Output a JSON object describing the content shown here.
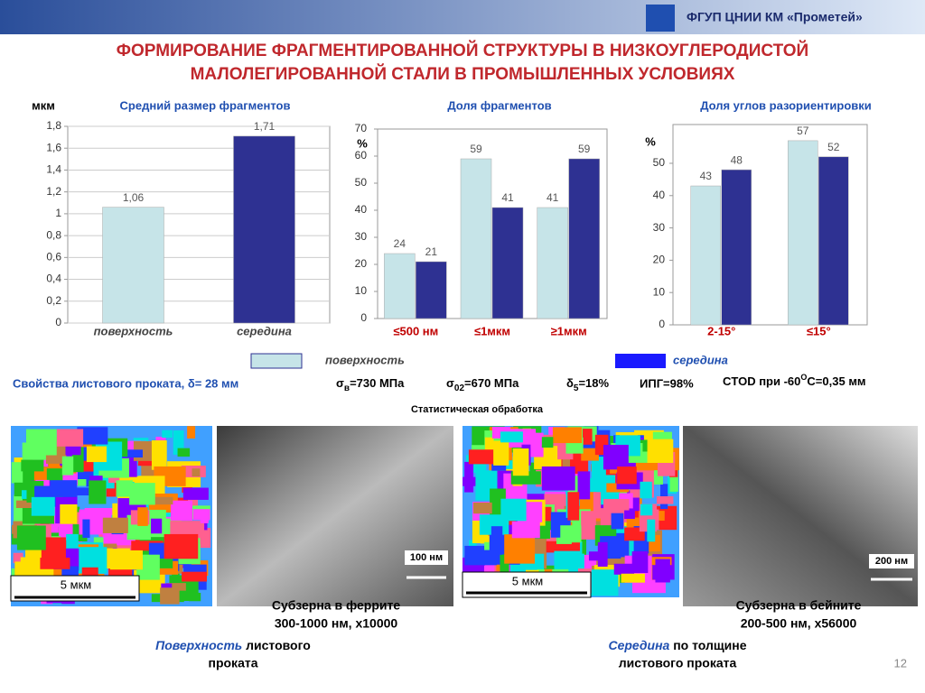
{
  "header": {
    "org": "ФГУП ЦНИИ КМ «Прометей»",
    "title": [
      "ФОРМИРОВАНИЕ ФРАГМЕНТИРОВАННОЙ СТРУКТУРЫ В НИЗКОУГЛЕРОДИСТОЙ",
      "МАЛОЛЕГИРОВАННОЙ СТАЛИ  В ПРОМЫШЛЕННЫХ УСЛОВИЯХ"
    ]
  },
  "chart_data": [
    {
      "type": "bar",
      "title": "Средний размер фрагментов",
      "y_label": "мкм",
      "categories": [
        "поверхность",
        "середина"
      ],
      "values": [
        1.06,
        1.71
      ],
      "value_labels": [
        "1,06",
        "1,71"
      ],
      "colors": [
        "#c6e4e8",
        "#2e3192"
      ],
      "ylim": [
        0,
        1.8
      ],
      "yticks": [
        0,
        {
          "value": 0.2,
          "label": "0,2"
        },
        {
          "value": 0.4,
          "label": "0,4"
        },
        {
          "value": 0.6,
          "label": "0,6"
        },
        {
          "value": 0.8,
          "label": "0,8"
        },
        1,
        {
          "value": 1.2,
          "label": "1,2"
        },
        {
          "value": 1.4,
          "label": "1,4"
        },
        {
          "value": 1.6,
          "label": "1,6"
        },
        {
          "value": 1.8,
          "label": "1,8"
        }
      ],
      "grid": true
    },
    {
      "type": "grouped_bar",
      "title": "Доля фрагментов",
      "y_label": "%",
      "categories": [
        "≤500 нм",
        "≤1мкм",
        "≥1мкм"
      ],
      "series": [
        {
          "name": "поверхность",
          "color": "#c6e4e8",
          "values": [
            24,
            59,
            41
          ]
        },
        {
          "name": "середина",
          "color": "#2e3192",
          "values": [
            21,
            41,
            59
          ]
        }
      ],
      "ylim": [
        0,
        70
      ],
      "yticks": [
        0,
        10,
        20,
        30,
        40,
        50,
        60,
        70
      ],
      "grid": false
    },
    {
      "type": "grouped_bar",
      "title": "Доля углов разориентировки",
      "y_label": "%",
      "categories": [
        "2-15°",
        "≤15°"
      ],
      "series": [
        {
          "name": "поверхность",
          "color": "#c6e4e8",
          "values": [
            43,
            57
          ]
        },
        {
          "name": "середина",
          "color": "#2e3192",
          "values": [
            48,
            52
          ]
        }
      ],
      "ylim": [
        0,
        62
      ],
      "yticks": [
        0,
        10,
        20,
        30,
        40,
        50
      ],
      "grid": false
    }
  ],
  "properties": {
    "label": "Свойства листового проката, δ= 28 мм",
    "sigma_b": {
      "symbol": "σ",
      "sub": "в",
      "text": "=730 МПа"
    },
    "sigma_02": {
      "symbol": "σ",
      "sub": "02",
      "text": "=670 МПа"
    },
    "delta_5": {
      "symbol": "δ",
      "sub": "5",
      "text": "=18%"
    },
    "ipg": "ИПГ=98%",
    "ctod": {
      "text": "CTOD  при -60",
      "sup": "O",
      "tail": "C=0,35 мм"
    }
  },
  "note": "Статистическая обработка",
  "images": [
    {
      "scale": "5 мкм"
    },
    {
      "scale": "100 нм",
      "caption": [
        "Субзерна в феррите",
        "300-1000 нм, х10000"
      ]
    },
    {
      "scale": "5 мкм"
    },
    {
      "scale": "200 нм",
      "caption": [
        "Субзерна в бейните",
        "200-500 нм, х56000"
      ]
    }
  ],
  "footer": [
    {
      "emph": "Поверхность",
      "text": " листового",
      "line2": "проката"
    },
    {
      "emph": "Середина",
      "text": " по толщине",
      "line2": "листового проката"
    }
  ],
  "page_number": "12"
}
